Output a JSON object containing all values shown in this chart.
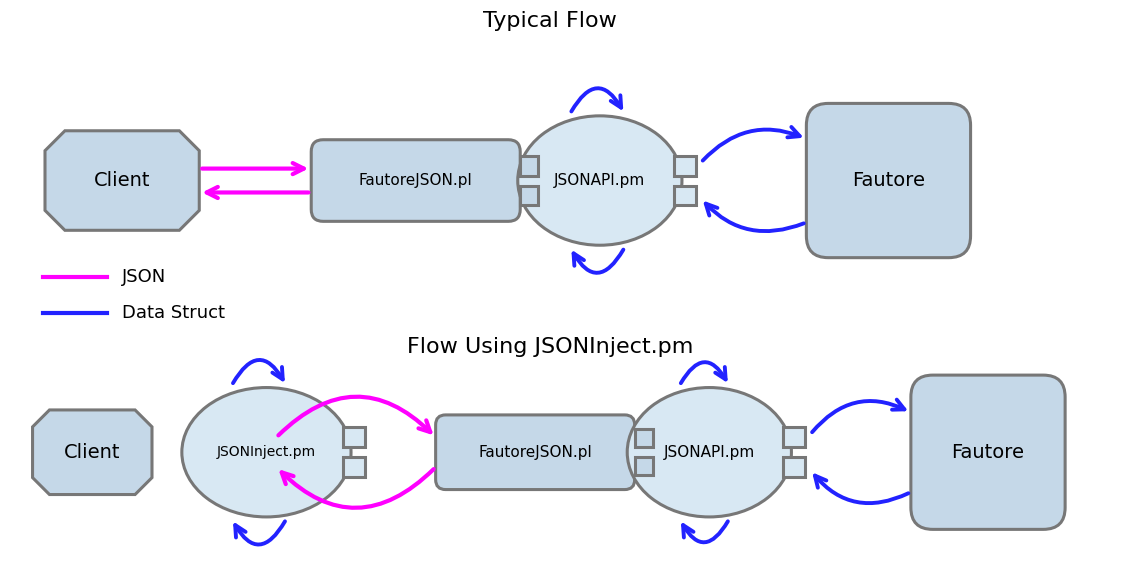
{
  "title1": "Typical Flow",
  "title2": "Flow Using JSONInject.pm",
  "legend_json_color": "#FF00FF",
  "legend_struct_color": "#2222FF",
  "legend_json_label": "JSON",
  "legend_struct_label": "Data Struct",
  "node_fill": "#C5D8E8",
  "node_fill_light": "#D8E8F3",
  "node_edge": "#777777",
  "bg_color": "#FFFFFF",
  "font_size": 14,
  "title_font_size": 16
}
